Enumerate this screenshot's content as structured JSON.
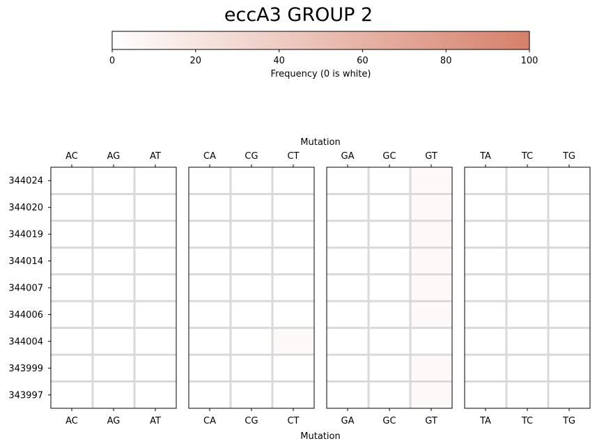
{
  "chart_data": {
    "type": "heatmap",
    "title": "eccA3 GROUP 2",
    "xlabel": "Mutation",
    "ylabel": "",
    "colorbar": {
      "label": "Frequency (0 is white)",
      "min": 0,
      "max": 100,
      "ticks": [
        0,
        20,
        40,
        60,
        80,
        100
      ],
      "color_low": "#ffffff",
      "color_high": "#d6806a"
    },
    "rows": [
      "344024",
      "344020",
      "344019",
      "344014",
      "344007",
      "344006",
      "344004",
      "343999",
      "343997"
    ],
    "panels": [
      {
        "columns": [
          "AC",
          "AG",
          "AT"
        ],
        "values": [
          [
            0,
            0,
            0
          ],
          [
            0,
            0,
            0
          ],
          [
            0,
            0,
            0
          ],
          [
            0,
            0,
            0
          ],
          [
            0,
            0,
            0
          ],
          [
            0,
            0,
            0
          ],
          [
            0,
            0,
            0
          ],
          [
            0,
            0,
            0
          ],
          [
            0,
            0,
            0
          ]
        ]
      },
      {
        "columns": [
          "CA",
          "CG",
          "CT"
        ],
        "values": [
          [
            0,
            0,
            0
          ],
          [
            0,
            0,
            0
          ],
          [
            0,
            0,
            0
          ],
          [
            0,
            0,
            0
          ],
          [
            0,
            0,
            0
          ],
          [
            0,
            0,
            0
          ],
          [
            0,
            0,
            5
          ],
          [
            0,
            0,
            0
          ],
          [
            0,
            0,
            0
          ]
        ]
      },
      {
        "columns": [
          "GA",
          "GC",
          "GT"
        ],
        "values": [
          [
            0,
            0,
            5
          ],
          [
            0,
            0,
            5
          ],
          [
            0,
            0,
            5
          ],
          [
            0,
            0,
            5
          ],
          [
            0,
            0,
            5
          ],
          [
            0,
            0,
            5
          ],
          [
            0,
            0,
            0
          ],
          [
            0,
            0,
            5
          ],
          [
            0,
            0,
            5
          ]
        ]
      },
      {
        "columns": [
          "TA",
          "TC",
          "TG"
        ],
        "values": [
          [
            0,
            0,
            0
          ],
          [
            0,
            0,
            0
          ],
          [
            0,
            0,
            0
          ],
          [
            0,
            0,
            0
          ],
          [
            0,
            0,
            0
          ],
          [
            0,
            0,
            0
          ],
          [
            0,
            0,
            0
          ],
          [
            0,
            0,
            0
          ],
          [
            0,
            0,
            0
          ]
        ]
      }
    ],
    "grid_color": "#d9d9d9"
  }
}
